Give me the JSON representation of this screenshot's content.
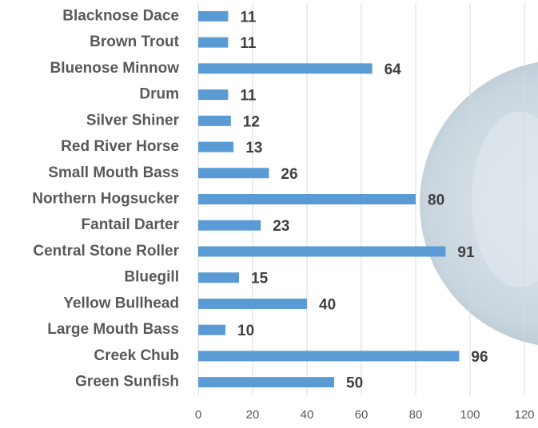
{
  "chart_data": {
    "type": "bar",
    "orientation": "horizontal",
    "categories": [
      "Blacknose Dace",
      "Brown Trout",
      "Bluenose Minnow",
      "Drum",
      "Silver Shiner",
      "Red River Horse",
      "Small Mouth Bass",
      "Northern Hogsucker",
      "Fantail Darter",
      "Central Stone Roller",
      "Bluegill",
      "Yellow Bullhead",
      "Large Mouth Bass",
      "Creek Chub",
      "Green Sunfish"
    ],
    "values": [
      11,
      11,
      64,
      11,
      12,
      13,
      26,
      80,
      23,
      91,
      15,
      40,
      10,
      96,
      50
    ],
    "color": "#5b9bd5",
    "xlim": [
      0,
      120
    ],
    "xticks": [
      0,
      20,
      40,
      60,
      80,
      100,
      120
    ],
    "grid": true
  }
}
